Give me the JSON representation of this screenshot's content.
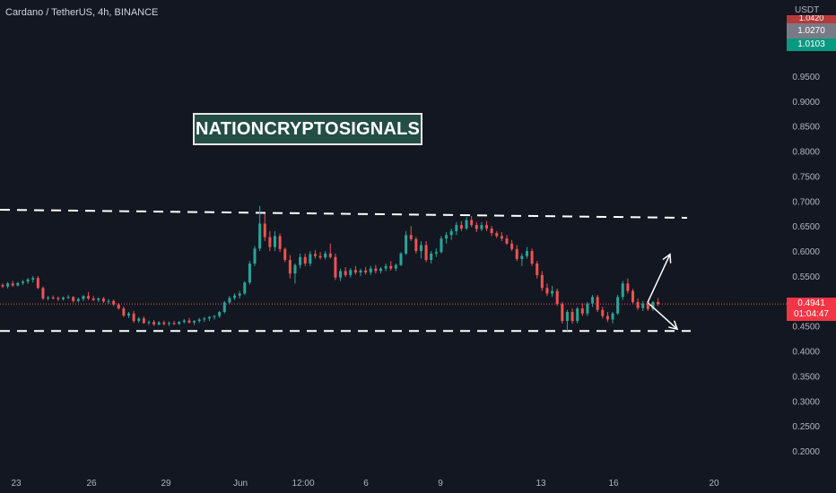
{
  "header": {
    "title": "Cardano / TetherUS, 4h, BINANCE"
  },
  "watermark": {
    "text": "NATIONCRYPTOSIGNALS"
  },
  "price_scale": {
    "currency": "USDT",
    "tags": {
      "stub": "1.0420",
      "grey": "1.0270",
      "green": "1.0103"
    },
    "last_price": "0.4941",
    "countdown": "01:04:47"
  },
  "colors": {
    "background": "#131722",
    "up": "#26a69a",
    "down": "#ef5350",
    "axis_text": "#b2b5be",
    "annotation": "#ffffff",
    "watermark_bg": "#244d43"
  },
  "chart_data": {
    "type": "candlestick",
    "title": "Cardano / TetherUS, 4h, BINANCE",
    "y_axis": {
      "ticks": [
        "0.9500",
        "0.9000",
        "0.8500",
        "0.8000",
        "0.7500",
        "0.7000",
        "0.6500",
        "0.6000",
        "0.5500",
        "0.5000",
        "0.4500",
        "0.4000",
        "0.3500",
        "0.3000",
        "0.2500",
        "0.2000"
      ],
      "ylim": [
        0.18,
        1.05
      ]
    },
    "x_axis": {
      "tick_labels": [
        "23",
        "26",
        "29",
        "Jun",
        "12:00",
        "6",
        "9",
        "13",
        "16",
        "20"
      ]
    },
    "levels": {
      "resistance": 0.68,
      "support": 0.44
    },
    "candles": [
      [
        0.532,
        0.535,
        0.526,
        0.529
      ],
      [
        0.529,
        0.538,
        0.525,
        0.535
      ],
      [
        0.535,
        0.54,
        0.528,
        0.531
      ],
      [
        0.531,
        0.538,
        0.529,
        0.536
      ],
      [
        0.536,
        0.542,
        0.532,
        0.539
      ],
      [
        0.539,
        0.546,
        0.534,
        0.543
      ],
      [
        0.543,
        0.55,
        0.537,
        0.546
      ],
      [
        0.546,
        0.55,
        0.524,
        0.526
      ],
      [
        0.526,
        0.529,
        0.502,
        0.505
      ],
      [
        0.505,
        0.51,
        0.501,
        0.507
      ],
      [
        0.507,
        0.511,
        0.503,
        0.506
      ],
      [
        0.506,
        0.509,
        0.5,
        0.504
      ],
      [
        0.504,
        0.509,
        0.501,
        0.507
      ],
      [
        0.507,
        0.512,
        0.504,
        0.508
      ],
      [
        0.508,
        0.51,
        0.497,
        0.5
      ],
      [
        0.5,
        0.507,
        0.497,
        0.504
      ],
      [
        0.504,
        0.512,
        0.5,
        0.51
      ],
      [
        0.51,
        0.518,
        0.502,
        0.505
      ],
      [
        0.505,
        0.51,
        0.5,
        0.502
      ],
      [
        0.502,
        0.507,
        0.498,
        0.505
      ],
      [
        0.505,
        0.508,
        0.496,
        0.499
      ],
      [
        0.499,
        0.504,
        0.494,
        0.5
      ],
      [
        0.5,
        0.503,
        0.49,
        0.493
      ],
      [
        0.493,
        0.496,
        0.483,
        0.485
      ],
      [
        0.485,
        0.489,
        0.468,
        0.471
      ],
      [
        0.471,
        0.478,
        0.466,
        0.475
      ],
      [
        0.475,
        0.48,
        0.456,
        0.46
      ],
      [
        0.46,
        0.468,
        0.456,
        0.465
      ],
      [
        0.465,
        0.469,
        0.454,
        0.456
      ],
      [
        0.456,
        0.461,
        0.452,
        0.458
      ],
      [
        0.458,
        0.462,
        0.45,
        0.453
      ],
      [
        0.453,
        0.46,
        0.451,
        0.457
      ],
      [
        0.457,
        0.461,
        0.451,
        0.454
      ],
      [
        0.454,
        0.459,
        0.45,
        0.456
      ],
      [
        0.456,
        0.46,
        0.452,
        0.454
      ],
      [
        0.454,
        0.46,
        0.452,
        0.458
      ],
      [
        0.458,
        0.464,
        0.455,
        0.461
      ],
      [
        0.461,
        0.466,
        0.455,
        0.457
      ],
      [
        0.457,
        0.462,
        0.452,
        0.46
      ],
      [
        0.46,
        0.466,
        0.456,
        0.463
      ],
      [
        0.463,
        0.468,
        0.458,
        0.465
      ],
      [
        0.465,
        0.47,
        0.46,
        0.468
      ],
      [
        0.468,
        0.472,
        0.463,
        0.47
      ],
      [
        0.47,
        0.48,
        0.466,
        0.478
      ],
      [
        0.478,
        0.5,
        0.475,
        0.497
      ],
      [
        0.497,
        0.51,
        0.494,
        0.506
      ],
      [
        0.506,
        0.515,
        0.502,
        0.511
      ],
      [
        0.511,
        0.52,
        0.505,
        0.515
      ],
      [
        0.515,
        0.54,
        0.512,
        0.537
      ],
      [
        0.537,
        0.58,
        0.533,
        0.575
      ],
      [
        0.575,
        0.61,
        0.57,
        0.605
      ],
      [
        0.605,
        0.69,
        0.6,
        0.655
      ],
      [
        0.655,
        0.675,
        0.62,
        0.628
      ],
      [
        0.628,
        0.64,
        0.6,
        0.608
      ],
      [
        0.608,
        0.64,
        0.6,
        0.63
      ],
      [
        0.63,
        0.635,
        0.598,
        0.604
      ],
      [
        0.604,
        0.607,
        0.578,
        0.582
      ],
      [
        0.582,
        0.592,
        0.545,
        0.555
      ],
      [
        0.555,
        0.575,
        0.535,
        0.572
      ],
      [
        0.572,
        0.595,
        0.565,
        0.588
      ],
      [
        0.588,
        0.595,
        0.57,
        0.575
      ],
      [
        0.575,
        0.6,
        0.57,
        0.594
      ],
      [
        0.594,
        0.602,
        0.585,
        0.59
      ],
      [
        0.59,
        0.598,
        0.583,
        0.587
      ],
      [
        0.587,
        0.6,
        0.583,
        0.595
      ],
      [
        0.595,
        0.615,
        0.585,
        0.588
      ],
      [
        0.588,
        0.595,
        0.542,
        0.547
      ],
      [
        0.547,
        0.565,
        0.54,
        0.56
      ],
      [
        0.56,
        0.568,
        0.548,
        0.552
      ],
      [
        0.552,
        0.566,
        0.547,
        0.562
      ],
      [
        0.562,
        0.57,
        0.553,
        0.557
      ],
      [
        0.557,
        0.565,
        0.55,
        0.561
      ],
      [
        0.561,
        0.568,
        0.553,
        0.557
      ],
      [
        0.557,
        0.57,
        0.552,
        0.565
      ],
      [
        0.565,
        0.572,
        0.555,
        0.56
      ],
      [
        0.56,
        0.568,
        0.555,
        0.565
      ],
      [
        0.565,
        0.575,
        0.56,
        0.57
      ],
      [
        0.57,
        0.58,
        0.561,
        0.565
      ],
      [
        0.565,
        0.575,
        0.56,
        0.572
      ],
      [
        0.572,
        0.598,
        0.57,
        0.595
      ],
      [
        0.595,
        0.64,
        0.592,
        0.632
      ],
      [
        0.632,
        0.65,
        0.62,
        0.624
      ],
      [
        0.624,
        0.628,
        0.595,
        0.6
      ],
      [
        0.6,
        0.62,
        0.585,
        0.612
      ],
      [
        0.612,
        0.62,
        0.578,
        0.582
      ],
      [
        0.582,
        0.6,
        0.575,
        0.595
      ],
      [
        0.595,
        0.605,
        0.588,
        0.598
      ],
      [
        0.598,
        0.63,
        0.595,
        0.625
      ],
      [
        0.625,
        0.638,
        0.615,
        0.632
      ],
      [
        0.632,
        0.645,
        0.622,
        0.64
      ],
      [
        0.64,
        0.658,
        0.632,
        0.652
      ],
      [
        0.652,
        0.66,
        0.64,
        0.645
      ],
      [
        0.645,
        0.668,
        0.642,
        0.662
      ],
      [
        0.662,
        0.67,
        0.648,
        0.652
      ],
      [
        0.652,
        0.658,
        0.638,
        0.644
      ],
      [
        0.644,
        0.658,
        0.64,
        0.652
      ],
      [
        0.652,
        0.66,
        0.64,
        0.645
      ],
      [
        0.645,
        0.65,
        0.63,
        0.636
      ],
      [
        0.636,
        0.64,
        0.626,
        0.63
      ],
      [
        0.63,
        0.638,
        0.62,
        0.625
      ],
      [
        0.625,
        0.632,
        0.612,
        0.615
      ],
      [
        0.615,
        0.622,
        0.6,
        0.604
      ],
      [
        0.604,
        0.612,
        0.58,
        0.584
      ],
      [
        0.584,
        0.595,
        0.57,
        0.59
      ],
      [
        0.59,
        0.608,
        0.585,
        0.6
      ],
      [
        0.6,
        0.605,
        0.57,
        0.575
      ],
      [
        0.575,
        0.58,
        0.545,
        0.552
      ],
      [
        0.552,
        0.56,
        0.52,
        0.526
      ],
      [
        0.526,
        0.535,
        0.51,
        0.515
      ],
      [
        0.515,
        0.53,
        0.508,
        0.52
      ],
      [
        0.52,
        0.525,
        0.49,
        0.494
      ],
      [
        0.494,
        0.498,
        0.455,
        0.46
      ],
      [
        0.46,
        0.482,
        0.44,
        0.478
      ],
      [
        0.478,
        0.485,
        0.455,
        0.46
      ],
      [
        0.46,
        0.488,
        0.455,
        0.485
      ],
      [
        0.485,
        0.495,
        0.47,
        0.475
      ],
      [
        0.475,
        0.498,
        0.47,
        0.495
      ],
      [
        0.495,
        0.512,
        0.488,
        0.508
      ],
      [
        0.508,
        0.512,
        0.478,
        0.482
      ],
      [
        0.482,
        0.488,
        0.465,
        0.47
      ],
      [
        0.47,
        0.478,
        0.458,
        0.463
      ],
      [
        0.463,
        0.478,
        0.455,
        0.475
      ],
      [
        0.475,
        0.512,
        0.472,
        0.508
      ],
      [
        0.508,
        0.54,
        0.502,
        0.535
      ],
      [
        0.535,
        0.545,
        0.515,
        0.52
      ],
      [
        0.52,
        0.524,
        0.495,
        0.498
      ],
      [
        0.498,
        0.505,
        0.482,
        0.486
      ],
      [
        0.486,
        0.5,
        0.48,
        0.495
      ],
      [
        0.495,
        0.5,
        0.48,
        0.484
      ],
      [
        0.484,
        0.5,
        0.48,
        0.498
      ],
      [
        0.498,
        0.506,
        0.49,
        0.494
      ]
    ],
    "annotations": [
      {
        "type": "arrow",
        "from": 0.497,
        "to": 0.59
      },
      {
        "type": "arrow",
        "from": 0.497,
        "to": 0.44
      }
    ]
  }
}
